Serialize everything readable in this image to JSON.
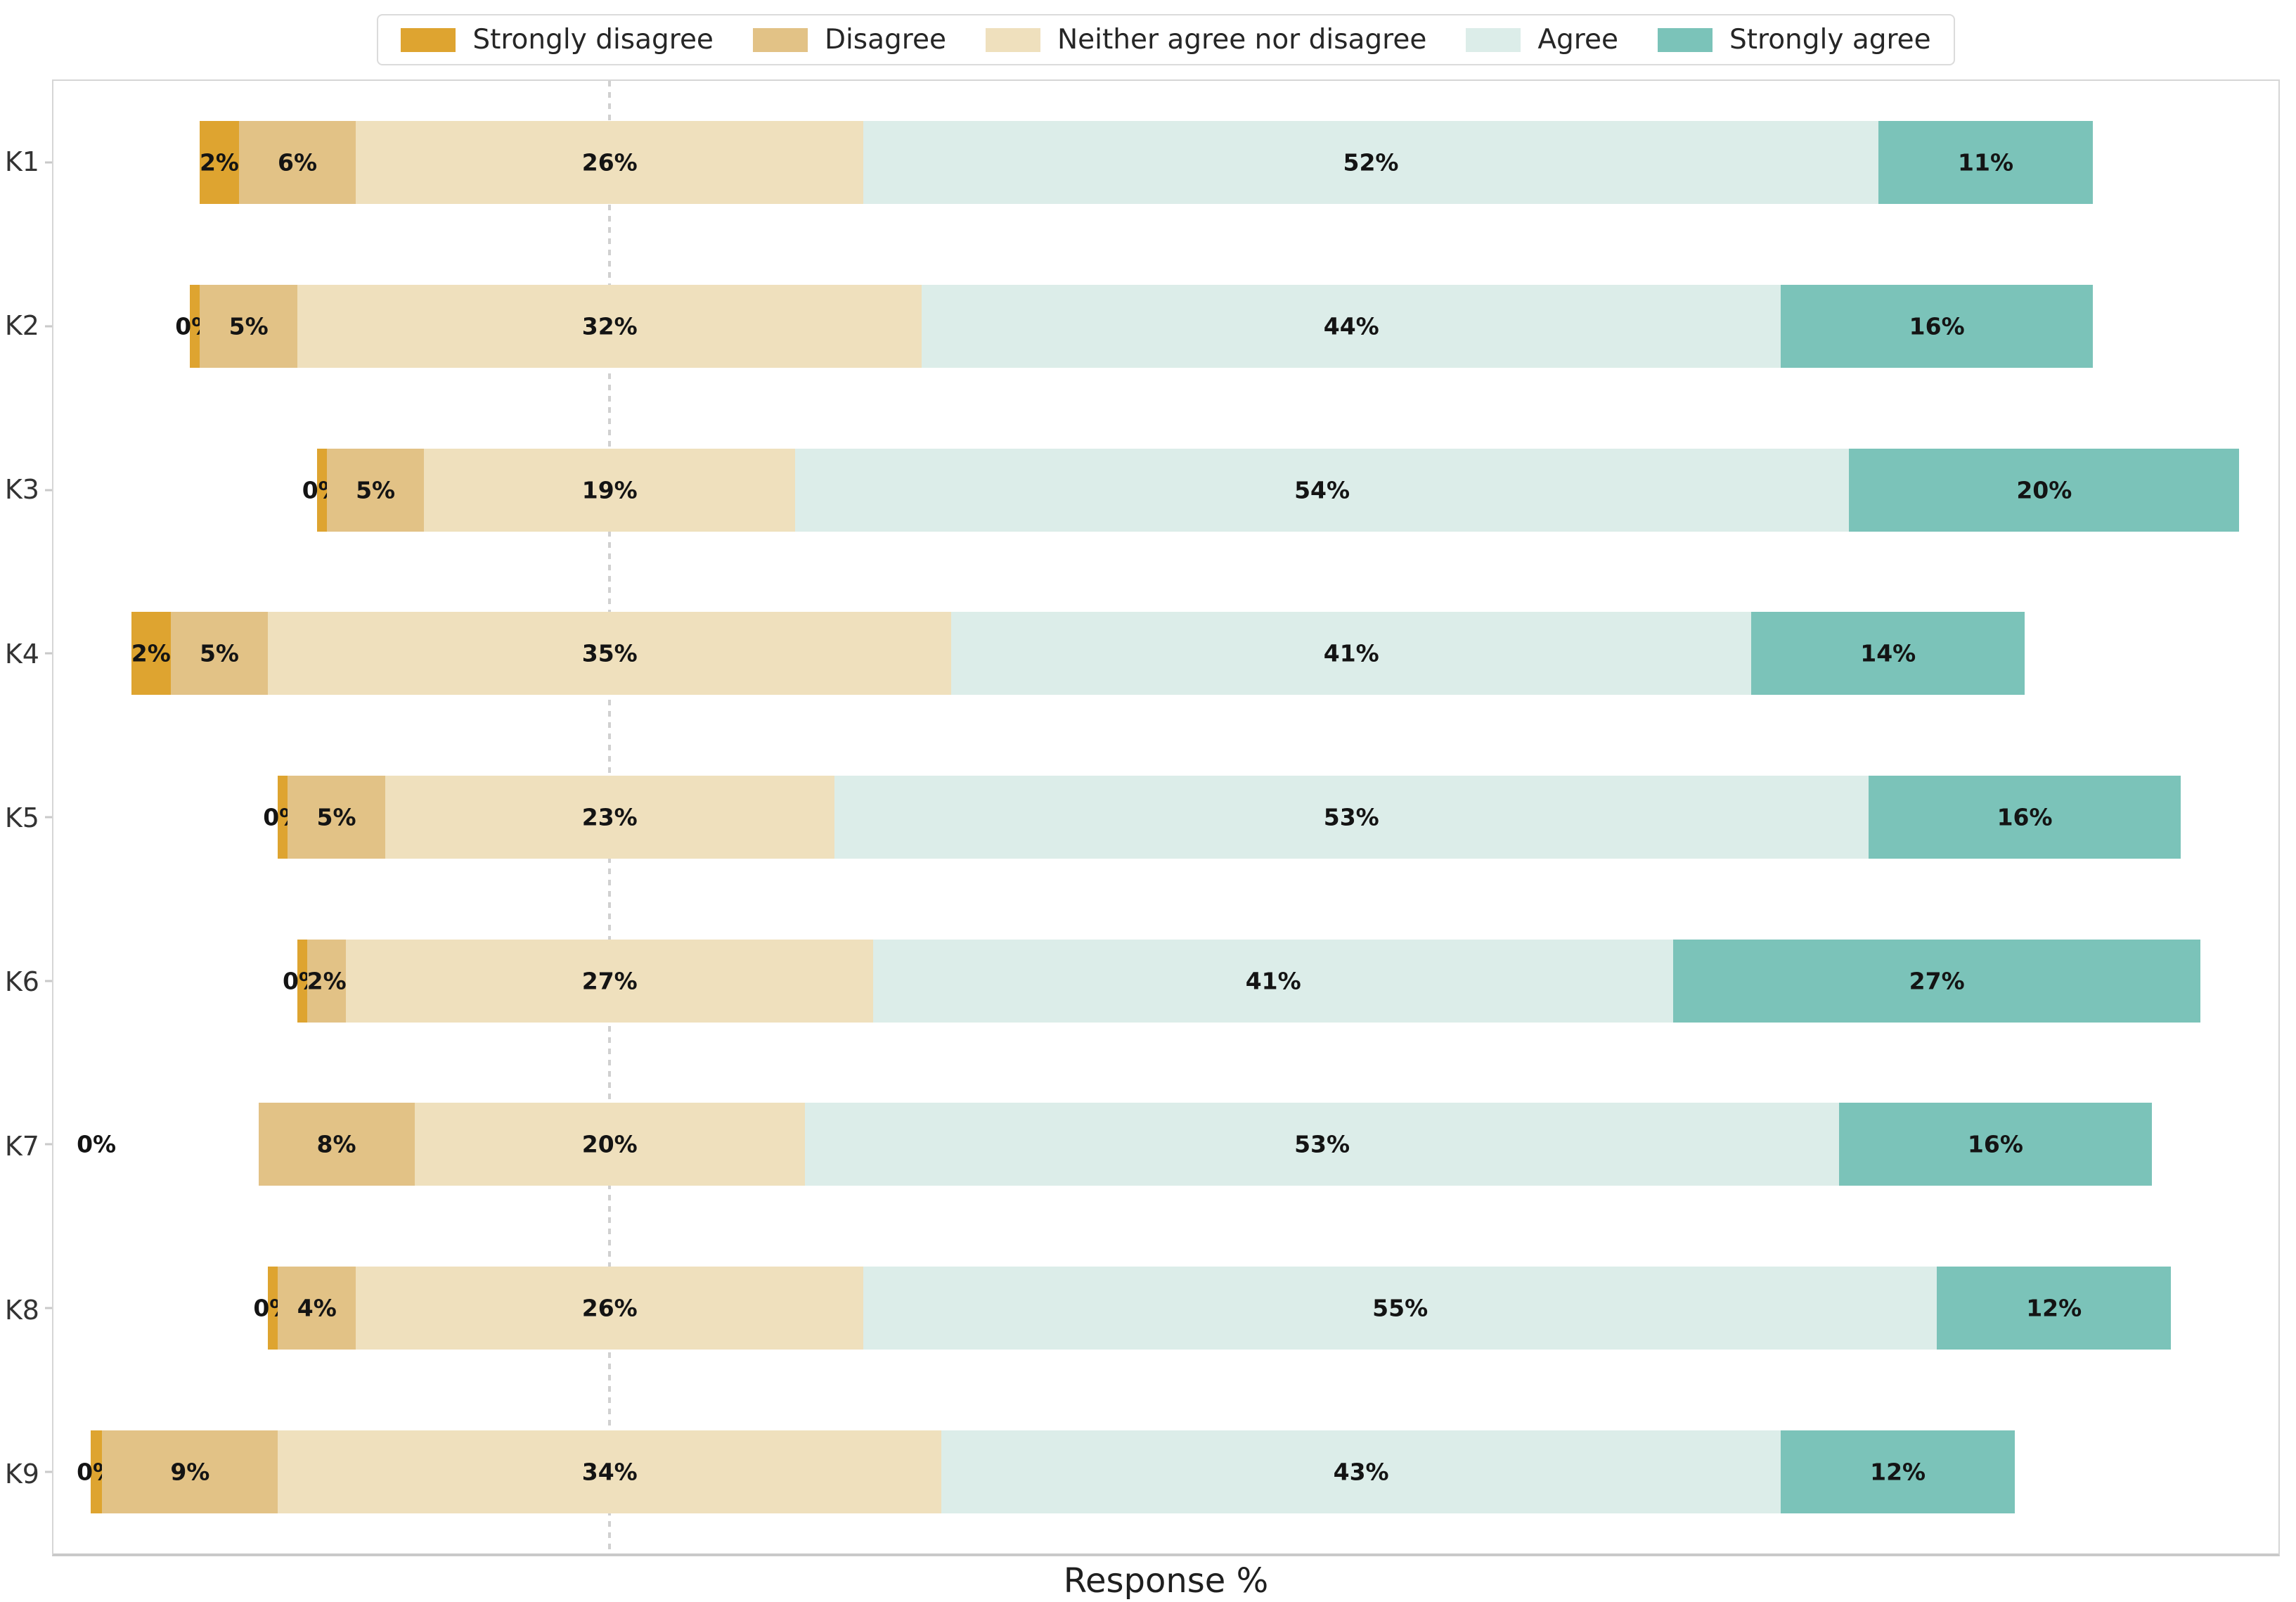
{
  "chart_data": {
    "type": "bar",
    "variant": "diverging_stacked_likert",
    "orientation": "horizontal",
    "title": "",
    "xlabel": "Response %",
    "categories": [
      "K1",
      "K2",
      "K3",
      "K4",
      "K5",
      "K6",
      "K7",
      "K8",
      "K9"
    ],
    "series": [
      {
        "name": "Strongly disagree",
        "color": "#DEA430",
        "values": [
          2,
          0,
          0,
          2,
          0,
          0,
          0,
          0,
          0
        ]
      },
      {
        "name": "Disagree",
        "color": "#E2C286",
        "values": [
          6,
          5,
          5,
          5,
          5,
          2,
          8,
          4,
          9
        ]
      },
      {
        "name": "Neither agree nor disagree",
        "color": "#EFE0BD",
        "values": [
          26,
          32,
          19,
          35,
          23,
          27,
          20,
          26,
          34
        ]
      },
      {
        "name": "Agree",
        "color": "#DCEDE9",
        "values": [
          52,
          44,
          54,
          41,
          53,
          41,
          53,
          55,
          43
        ]
      },
      {
        "name": "Strongly agree",
        "color": "#7BC3B9",
        "values": [
          11,
          16,
          20,
          14,
          16,
          27,
          16,
          12,
          12
        ]
      }
    ],
    "value_label_format": "{value}%",
    "value_label_color": "#141414",
    "axis": {
      "xmin": -28.5,
      "xmax": 85.5,
      "center_line_x": 0,
      "x_tick_labels": [],
      "grid": false
    },
    "legend": {
      "position": "top-center"
    },
    "layout_hints": {
      "neutral_split": true,
      "zero_sliver_width": 0.5,
      "row_overrides": {
        "K7": {
          "sd_width": 0,
          "sd_label_x": -26.3
        },
        "K9": {
          "sd_width": 0.6
        }
      }
    }
  }
}
